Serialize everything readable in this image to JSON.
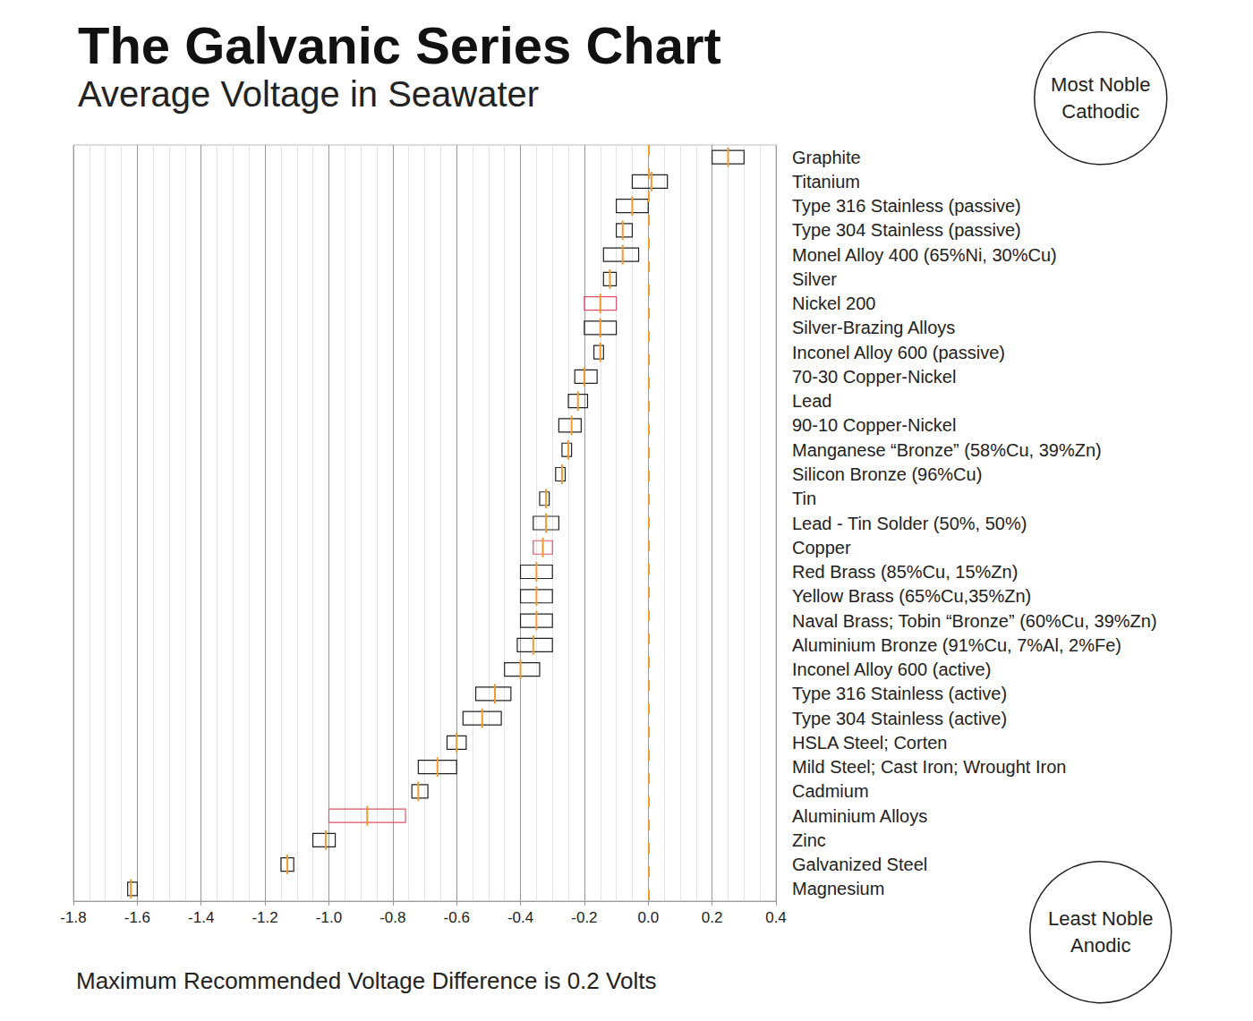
{
  "chart_data": {
    "type": "range",
    "title": "The Galvanic Series Chart",
    "subtitle": "Average Voltage in Seawater",
    "annotations": [
      "Most Noble\nCathodic",
      "Least Noble\nAnodic",
      "Maximum Recommended Voltage Difference is 0.2 Volts"
    ],
    "orientation": "horizontal",
    "grid": true,
    "categories": [
      "Graphite",
      "Titanium",
      "Type 316 Stainless (passive)",
      "Type 304 Stainless (passive)",
      "Monel Alloy 400 (65%Ni, 30%Cu)",
      "Silver",
      "Nickel 200",
      "Silver-Brazing Alloys",
      "Inconel Alloy 600 (passive)",
      "70-30 Copper-Nickel",
      "Lead",
      "90-10 Copper-Nickel",
      "Manganese “Bronze” (58%Cu, 39%Zn)",
      "Silicon Bronze (96%Cu)",
      "Tin",
      "Lead - Tin Solder (50%, 50%)",
      "Copper",
      "Red Brass (85%Cu, 15%Zn)",
      "Yellow Brass (65%Cu,35%Zn)",
      "Naval Brass; Tobin “Bronze” (60%Cu, 39%Zn)",
      "Aluminium Bronze (91%Cu, 7%Al, 2%Fe)",
      "Inconel Alloy 600 (active)",
      "Type 316 Stainless (active)",
      "Type 304 Stainless (active)",
      "HSLA Steel; Corten",
      "Mild Steel; Cast Iron; Wrought Iron",
      "Cadmium",
      "Aluminium Alloys",
      "Zinc",
      "Galvanized Steel",
      "Magnesium"
    ],
    "series": [
      {
        "type": "range",
        "low": [
          0.2,
          -0.05,
          -0.1,
          -0.1,
          -0.14,
          -0.14,
          -0.2,
          -0.2,
          -0.17,
          -0.23,
          -0.25,
          -0.28,
          -0.27,
          -0.29,
          -0.34,
          -0.36,
          -0.36,
          -0.4,
          -0.4,
          -0.4,
          -0.41,
          -0.45,
          -0.54,
          -0.58,
          -0.63,
          -0.72,
          -0.74,
          -1.0,
          -1.05,
          -1.15,
          -1.63
        ],
        "high": [
          0.3,
          0.06,
          0.0,
          -0.05,
          -0.03,
          -0.1,
          -0.1,
          -0.1,
          -0.14,
          -0.16,
          -0.19,
          -0.21,
          -0.24,
          -0.26,
          -0.31,
          -0.28,
          -0.3,
          -0.3,
          -0.3,
          -0.3,
          -0.3,
          -0.34,
          -0.43,
          -0.46,
          -0.57,
          -0.6,
          -0.69,
          -0.76,
          -0.98,
          -1.11,
          -1.6
        ],
        "colors": [
          "#222222",
          "#222222",
          "#222222",
          "#222222",
          "#222222",
          "#222222",
          "#e0506a",
          "#222222",
          "#222222",
          "#222222",
          "#222222",
          "#222222",
          "#222222",
          "#222222",
          "#222222",
          "#222222",
          "#e0506a",
          "#222222",
          "#222222",
          "#222222",
          "#222222",
          "#222222",
          "#222222",
          "#222222",
          "#222222",
          "#222222",
          "#222222",
          "#e0506a",
          "#222222",
          "#222222",
          "#222222"
        ]
      },
      {
        "type": "marker",
        "marker": "line",
        "color": "#f39a2c",
        "values": [
          0.25,
          0.01,
          -0.05,
          -0.08,
          -0.08,
          -0.12,
          -0.15,
          -0.15,
          -0.15,
          -0.2,
          -0.22,
          -0.24,
          -0.25,
          -0.27,
          -0.32,
          -0.32,
          -0.33,
          -0.35,
          -0.35,
          -0.35,
          -0.36,
          -0.4,
          -0.48,
          -0.52,
          -0.6,
          -0.66,
          -0.72,
          -0.88,
          -1.01,
          -1.13,
          -1.62
        ]
      }
    ],
    "reference_lines": [
      {
        "x": 0,
        "color": "#f39a2c",
        "line_style": "dashed"
      }
    ],
    "xlim": [
      -1.8,
      0.4
    ],
    "xticks": [
      -1.8,
      -1.6,
      -1.4,
      -1.2,
      {
        "value": -1,
        "label": "-1.0"
      },
      -0.8,
      -0.6,
      -0.4,
      -0.2,
      {
        "value": 0,
        "label": "0.0"
      },
      0.2,
      0.4
    ]
  }
}
